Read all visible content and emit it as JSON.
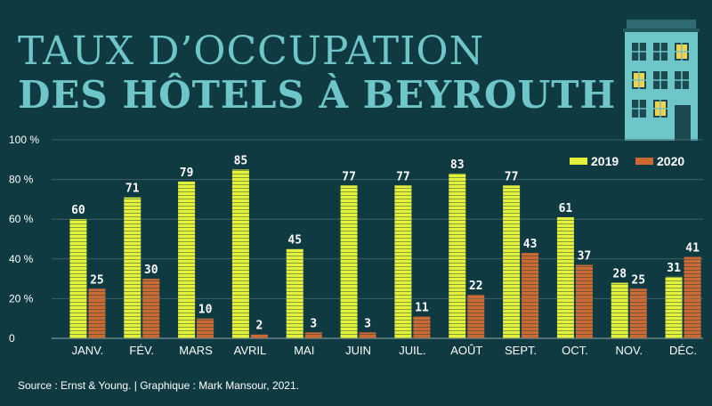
{
  "title_line1": "TAUX D’OCCUPATION",
  "title_line2": "DES HÔTELS À BEYROUTH",
  "source": "Source : Ernst & Young. | Graphique : Mark Mansour, 2021.",
  "colors": {
    "background": "#0f3a41",
    "title": "#6fc6c8",
    "series_2019": "#e4f03a",
    "series_2020": "#cc6a33",
    "grid": "#3d6167",
    "text": "#ffffff"
  },
  "chart_data": {
    "type": "bar",
    "categories": [
      "JANV.",
      "FÉV.",
      "MARS",
      "AVRIL",
      "MAI",
      "JUIN",
      "JUIL.",
      "AOÛT",
      "SEPT.",
      "OCT.",
      "NOV.",
      "DÉC."
    ],
    "series": [
      {
        "name": "2019",
        "values": [
          60,
          71,
          79,
          85,
          45,
          77,
          77,
          83,
          77,
          61,
          28,
          31
        ]
      },
      {
        "name": "2020",
        "values": [
          25,
          30,
          10,
          2,
          3,
          3,
          11,
          22,
          43,
          37,
          25,
          41
        ]
      }
    ],
    "yticks": [
      "0",
      "20 %",
      "40 %",
      "60 %",
      "80 %",
      "100 %"
    ],
    "ylim": [
      0,
      100
    ],
    "legend_position": "top-right",
    "grid": true
  }
}
